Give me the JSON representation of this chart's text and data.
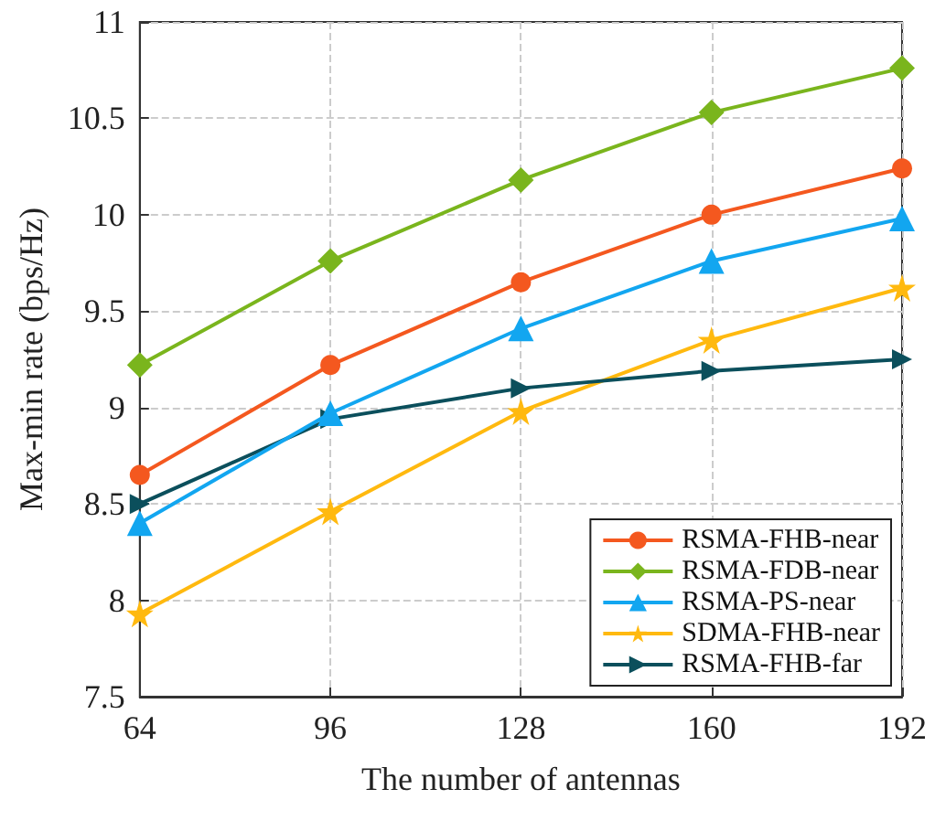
{
  "chart_data": {
    "type": "line",
    "xlabel": "The number of antennas",
    "ylabel": "Max-min rate (bps/Hz)",
    "x": [
      64,
      96,
      128,
      160,
      192
    ],
    "xlim": [
      64,
      192
    ],
    "xticks": [
      64,
      96,
      128,
      160,
      192
    ],
    "ylim": [
      7.5,
      11
    ],
    "yticks": [
      7.5,
      8,
      8.5,
      9,
      9.5,
      10,
      10.5,
      11
    ],
    "grid": true,
    "legend": "bottom right",
    "line_style": "solid",
    "series": [
      {
        "name": "RSMA-FHB-near",
        "color": "#f4581f",
        "marker": "circle",
        "values": [
          8.65,
          9.22,
          9.65,
          10.0,
          10.24
        ]
      },
      {
        "name": "RSMA-FDB-near",
        "color": "#7ab51d",
        "marker": "diamond",
        "values": [
          9.22,
          9.76,
          10.18,
          10.53,
          10.76
        ]
      },
      {
        "name": "RSMA-PS-near",
        "color": "#12a6f0",
        "marker": "triangle",
        "values": [
          8.4,
          8.97,
          9.41,
          9.76,
          9.98
        ]
      },
      {
        "name": "SDMA-FHB-near",
        "color": "#ffb90f",
        "marker": "star",
        "values": [
          7.93,
          8.46,
          8.98,
          9.35,
          9.62
        ]
      },
      {
        "name": "RSMA-FHB-far",
        "color": "#0b4f5c",
        "marker": "triangle-right",
        "values": [
          8.5,
          8.94,
          9.1,
          9.19,
          9.25
        ]
      }
    ]
  }
}
